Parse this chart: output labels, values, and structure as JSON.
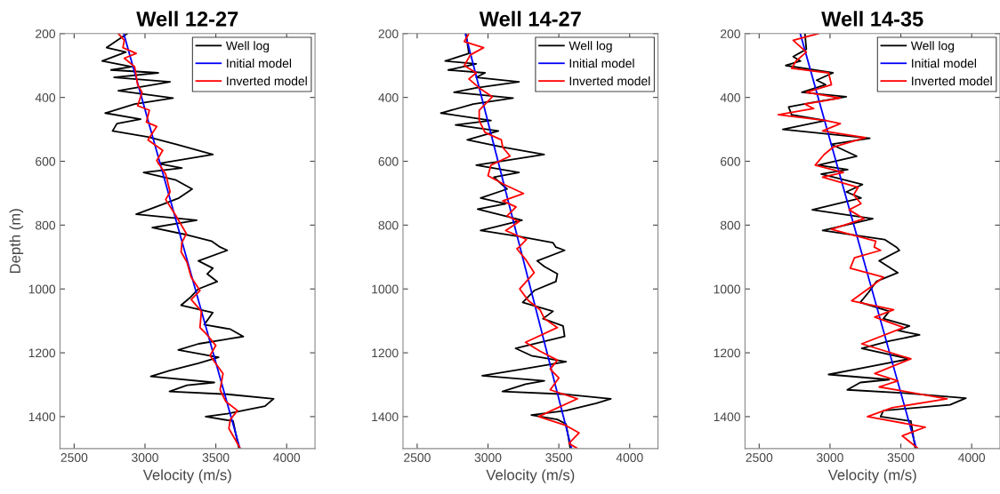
{
  "chart_data": [
    {
      "type": "line",
      "title": "Well 12-27",
      "xlabel": "Velocity (m/s)",
      "ylabel": "Depth (m)",
      "xlim": [
        2400,
        4200
      ],
      "xticks": [
        2500,
        3000,
        3500,
        4000
      ],
      "ylim": [
        1500,
        200
      ],
      "yticks": [
        200,
        400,
        600,
        800,
        1000,
        1200,
        1400
      ],
      "legend": "top right",
      "grid": false,
      "series": [
        {
          "name": "Well log",
          "color": "#000000",
          "x": [
            2875,
            2729,
            2865,
            2698,
            2906,
            2760,
            3094,
            2781,
            3177,
            2812,
            3198,
            2927,
            2719,
            2969,
            2802,
            2771,
            3021,
            3219,
            3479,
            3094,
            3260,
            2990,
            3219,
            3333,
            3240,
            3135,
            2938,
            3365,
            3052,
            3302,
            3469,
            3531,
            3581,
            3377,
            3479,
            3439,
            3510,
            3377,
            3316,
            3255,
            3479,
            3418,
            3602,
            3694,
            3377,
            3235,
            3520,
            3377,
            3173,
            3041,
            3490,
            3296,
            3173,
            3581,
            3908,
            3847,
            3581,
            3428,
            3622,
            3663
          ],
          "values": [
            200,
            244,
            258,
            286,
            304,
            314,
            323,
            337,
            351,
            379,
            402,
            421,
            449,
            468,
            482,
            505,
            524,
            547,
            579,
            607,
            621,
            635,
            659,
            687,
            715,
            733,
            766,
            785,
            808,
            831,
            850,
            869,
            879,
            912,
            935,
            953,
            977,
            1000,
            1028,
            1051,
            1074,
            1112,
            1126,
            1149,
            1172,
            1191,
            1214,
            1233,
            1256,
            1274,
            1293,
            1302,
            1321,
            1330,
            1344,
            1367,
            1391,
            1400,
            1414,
            1500
          ]
        },
        {
          "name": "Initial model",
          "color": "#0000ff",
          "x": [
            2850,
            3670
          ],
          "values": [
            200,
            1500
          ]
        },
        {
          "name": "Inverted model",
          "color": "#ff0000",
          "x": [
            2812,
            2854,
            2844,
            2938,
            2854,
            2927,
            2948,
            2979,
            2948,
            3031,
            3010,
            3083,
            3021,
            3125,
            3083,
            3146,
            3177,
            3146,
            3219,
            3292,
            3260,
            3255,
            3296,
            3326,
            3388,
            3326,
            3398,
            3388,
            3439,
            3500,
            3459,
            3551,
            3530,
            3571,
            3653,
            3602,
            3592,
            3673
          ],
          "values": [
            200,
            221,
            244,
            262,
            277,
            304,
            360,
            384,
            426,
            440,
            477,
            491,
            533,
            566,
            598,
            640,
            696,
            720,
            771,
            827,
            855,
            884,
            916,
            963,
            1005,
            1033,
            1070,
            1121,
            1144,
            1177,
            1209,
            1265,
            1316,
            1353,
            1381,
            1409,
            1437,
            1500
          ]
        }
      ]
    },
    {
      "type": "line",
      "title": "Well 14-27",
      "xlabel": "Velocity (m/s)",
      "xlim": [
        2400,
        4200
      ],
      "xticks": [
        2500,
        3000,
        3500,
        4000
      ],
      "ylim": [
        1500,
        200
      ],
      "yticks": [
        200,
        400,
        600,
        800,
        1000,
        1200,
        1400
      ],
      "legend": "top right",
      "grid": false,
      "series": [
        {
          "name": "Well log",
          "color": "#000000",
          "x": [
            2844,
            2865,
            2698,
            2917,
            2719,
            2979,
            2917,
            3219,
            2917,
            2760,
            3177,
            2896,
            2667,
            3021,
            2771,
            3073,
            2854,
            3104,
            3396,
            2917,
            3219,
            3042,
            3135,
            2948,
            3125,
            2927,
            3240,
            2948,
            3229,
            3458,
            3479,
            3541,
            3347,
            3398,
            3490,
            3479,
            3326,
            3245,
            3459,
            3388,
            3530,
            3541,
            3194,
            3306,
            3551,
            3245,
            2959,
            3398,
            3265,
            3102,
            3551,
            3867,
            3765,
            3551,
            3306,
            3490,
            3551,
            3581
          ],
          "values": [
            200,
            262,
            286,
            295,
            314,
            323,
            337,
            351,
            370,
            384,
            402,
            421,
            449,
            472,
            486,
            505,
            533,
            556,
            579,
            612,
            635,
            650,
            687,
            715,
            733,
            750,
            785,
            817,
            836,
            855,
            869,
            879,
            912,
            930,
            953,
            977,
            1005,
            1042,
            1070,
            1093,
            1116,
            1149,
            1186,
            1209,
            1228,
            1251,
            1272,
            1288,
            1298,
            1321,
            1330,
            1344,
            1358,
            1381,
            1395,
            1409,
            1423,
            1500
          ]
        },
        {
          "name": "Initial model",
          "color": "#0000ff",
          "x": [
            2840,
            3590
          ],
          "values": [
            200,
            1500
          ]
        },
        {
          "name": "Inverted model",
          "color": "#ff0000",
          "x": [
            2865,
            2833,
            2969,
            2875,
            2833,
            2917,
            2865,
            2938,
            3031,
            2938,
            2938,
            2979,
            3094,
            3104,
            3156,
            3021,
            3000,
            3115,
            3250,
            3104,
            3198,
            3135,
            3219,
            3125,
            3271,
            3219,
            3204,
            3265,
            3326,
            3224,
            3286,
            3367,
            3398,
            3490,
            3265,
            3367,
            3490,
            3439,
            3500,
            3439,
            3632,
            3469,
            3357,
            3551,
            3643,
            3571,
            3632
          ],
          "values": [
            200,
            225,
            244,
            267,
            300,
            323,
            342,
            370,
            398,
            440,
            472,
            510,
            533,
            556,
            584,
            612,
            645,
            673,
            701,
            724,
            743,
            771,
            789,
            817,
            845,
            869,
            874,
            907,
            949,
            1000,
            1037,
            1065,
            1093,
            1121,
            1167,
            1195,
            1223,
            1251,
            1279,
            1316,
            1344,
            1377,
            1400,
            1428,
            1451,
            1484,
            1500
          ]
        }
      ]
    },
    {
      "type": "line",
      "title": "Well 14-35",
      "xlabel": "Velocity (m/s)",
      "xlim": [
        2400,
        4200
      ],
      "xticks": [
        2500,
        3000,
        3500,
        4000
      ],
      "ylim": [
        1500,
        200
      ],
      "yticks": [
        200,
        400,
        600,
        800,
        1000,
        1200,
        1400
      ],
      "legend": "top right",
      "grid": false,
      "series": [
        {
          "name": "Well log",
          "color": "#000000",
          "x": [
            2823,
            2833,
            2740,
            2792,
            2688,
            3021,
            2906,
            2969,
            2802,
            3115,
            2875,
            2708,
            2729,
            2969,
            2667,
            3281,
            3010,
            3188,
            2917,
            3125,
            2938,
            3229,
            3115,
            3219,
            2875,
            3302,
            2948,
            3385,
            3469,
            3490,
            3347,
            3479,
            3326,
            3275,
            3214,
            3418,
            3377,
            3561,
            3479,
            3632,
            3418,
            3224,
            3561,
            3296,
            2990,
            3418,
            3214,
            3122,
            3520,
            3959,
            3847,
            3377,
            3357,
            3571,
            3602
          ],
          "values": [
            200,
            249,
            272,
            286,
            300,
            323,
            346,
            360,
            384,
            398,
            416,
            430,
            454,
            472,
            500,
            528,
            547,
            584,
            612,
            626,
            640,
            673,
            696,
            715,
            752,
            780,
            817,
            845,
            869,
            879,
            912,
            949,
            977,
            1009,
            1042,
            1070,
            1093,
            1116,
            1130,
            1144,
            1163,
            1186,
            1219,
            1242,
            1268,
            1284,
            1293,
            1316,
            1326,
            1342,
            1363,
            1381,
            1400,
            1414,
            1500
          ]
        },
        {
          "name": "Initial model",
          "color": "#0000ff",
          "x": [
            2790,
            3610
          ],
          "values": [
            200,
            1500
          ]
        },
        {
          "name": "Inverted model",
          "color": "#ff0000",
          "x": [
            2917,
            2740,
            2833,
            2760,
            2729,
            2990,
            3010,
            2833,
            3073,
            2823,
            2885,
            2635,
            2969,
            3073,
            2948,
            3250,
            3021,
            2958,
            2896,
            3094,
            2948,
            3198,
            3167,
            3219,
            3135,
            3240,
            3010,
            3323,
            3312,
            3357,
            3173,
            3143,
            3377,
            3296,
            3153,
            3449,
            3316,
            3520,
            3224,
            3571,
            3316,
            3479,
            3347,
            3826,
            3439,
            3265,
            3673,
            3510,
            3622
          ],
          "values": [
            200,
            221,
            258,
            286,
            309,
            323,
            360,
            384,
            402,
            421,
            435,
            454,
            472,
            482,
            505,
            526,
            556,
            579,
            612,
            635,
            650,
            682,
            705,
            733,
            752,
            780,
            813,
            850,
            869,
            879,
            902,
            935,
            963,
            991,
            1037,
            1065,
            1088,
            1121,
            1172,
            1219,
            1265,
            1288,
            1307,
            1344,
            1372,
            1400,
            1433,
            1460,
            1500
          ]
        }
      ]
    }
  ]
}
